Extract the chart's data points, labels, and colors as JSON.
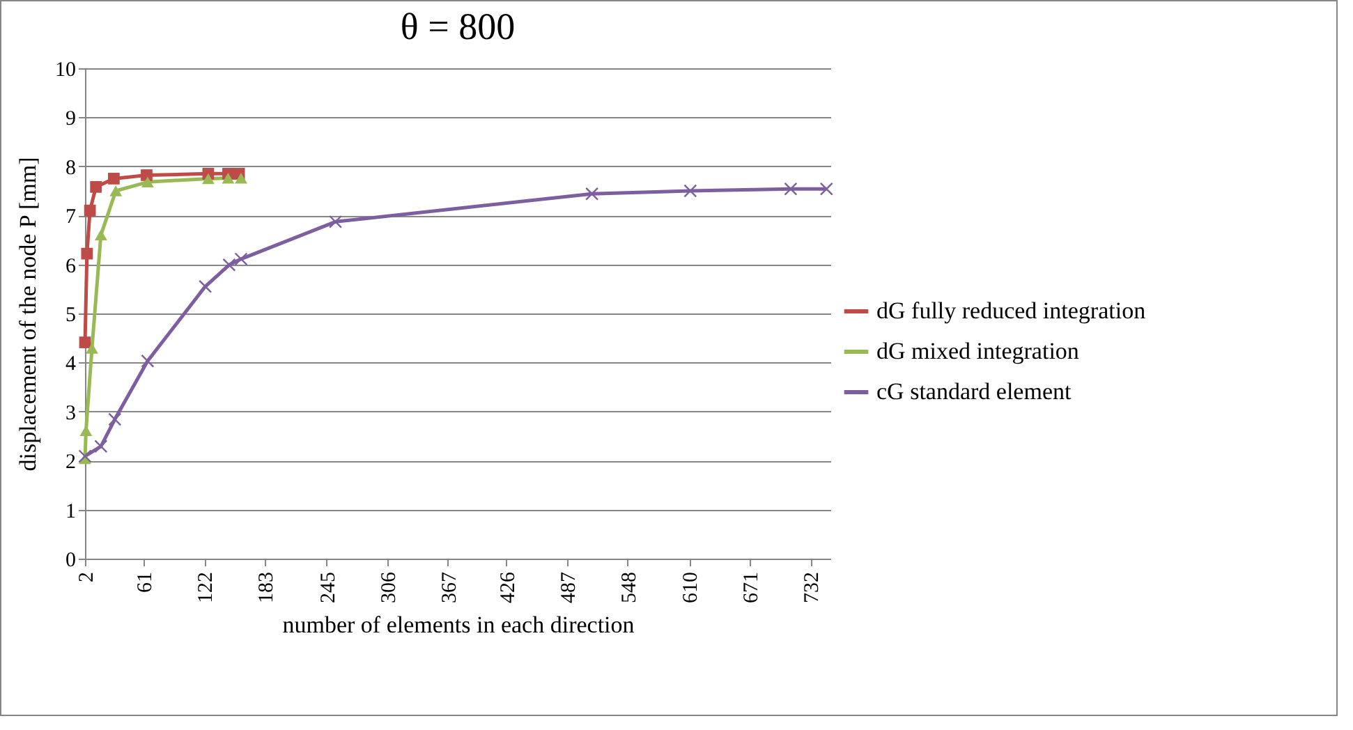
{
  "chart_data": {
    "type": "line",
    "title": "θ = 800",
    "xlabel": "number of elements in each direction",
    "ylabel": "displacement  of the node P [mm]",
    "xlim": [
      2,
      752
    ],
    "xticks": [
      2,
      61,
      122,
      183,
      245,
      306,
      367,
      426,
      487,
      548,
      610,
      671,
      732
    ],
    "ylim": [
      0,
      10
    ],
    "yticks": [
      0,
      1,
      2,
      3,
      4,
      5,
      6,
      7,
      8,
      9,
      10
    ],
    "grid": "y",
    "legend": "right",
    "line_style": "solid",
    "series": [
      {
        "name": "dG fully reduced integration",
        "color": "#be4b48",
        "marker": "square",
        "x": [
          2,
          4,
          7,
          13,
          31,
          64,
          126,
          146,
          157
        ],
        "values": [
          4.41,
          6.22,
          7.1,
          7.58,
          7.75,
          7.82,
          7.85,
          7.85,
          7.85
        ]
      },
      {
        "name": "dG mixed integration",
        "color": "#98b954",
        "marker": "triangle",
        "x": [
          2,
          3,
          9,
          18,
          33,
          65,
          126,
          146,
          159
        ],
        "values": [
          2.04,
          2.61,
          4.29,
          6.6,
          7.5,
          7.68,
          7.75,
          7.76,
          7.76
        ]
      },
      {
        "name": "cG standard element",
        "color": "#7d5fa0",
        "marker": "cross",
        "x": [
          2,
          18,
          32,
          65,
          123,
          147,
          159,
          254,
          512,
          611,
          712,
          748
        ],
        "values": [
          2.09,
          2.29,
          2.84,
          4.03,
          5.55,
          5.99,
          6.11,
          6.87,
          7.44,
          7.5,
          7.54,
          7.54
        ]
      }
    ]
  }
}
